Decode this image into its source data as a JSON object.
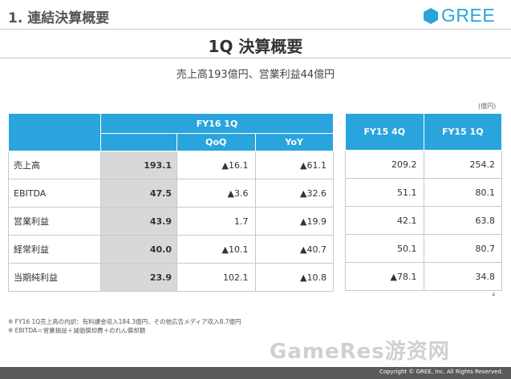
{
  "header": {
    "section_title": "1. 連結決算概要",
    "logo_text": "GREE",
    "brand_color": "#2aa4dc"
  },
  "main": {
    "title": "1Q 決算概要",
    "subtitle": "売上高193億円、営業利益44億円",
    "unit": "(億円)"
  },
  "table1": {
    "current_period": "FY16 1Q",
    "qoq": "QoQ",
    "yoy": "YoY",
    "rows": [
      {
        "label": "売上高",
        "value": "193.1",
        "qoq": "▲16.1",
        "yoy": "▲61.1"
      },
      {
        "label": "EBITDA",
        "value": "47.5",
        "qoq": "▲3.6",
        "yoy": "▲32.6"
      },
      {
        "label": "営業利益",
        "value": "43.9",
        "qoq": "1.7",
        "yoy": "▲19.9"
      },
      {
        "label": "経常利益",
        "value": "40.0",
        "qoq": "▲10.1",
        "yoy": "▲40.7"
      },
      {
        "label": "当期純利益",
        "value": "23.9",
        "qoq": "102.1",
        "yoy": "▲10.8"
      }
    ]
  },
  "table2": {
    "col1": "FY15 4Q",
    "col2": "FY15 1Q",
    "rows": [
      {
        "c1": "209.2",
        "c2": "254.2"
      },
      {
        "c1": "51.1",
        "c2": "80.1"
      },
      {
        "c1": "42.1",
        "c2": "63.8"
      },
      {
        "c1": "50.1",
        "c2": "80.7"
      },
      {
        "c1": "▲78.1",
        "c2": "34.8"
      }
    ]
  },
  "notes": [
    "※ FY16 1Q売上高の内訳：有料課金収入184.3億円、その他広告メディア収入8.7億円",
    "※ EBITDA＝営業損益＋減価償却費＋のれん償却額"
  ],
  "page_number": "4",
  "watermark": "GameRes游资网",
  "copyright": "Copyright © GREE, Inc. All Rights Reserved."
}
